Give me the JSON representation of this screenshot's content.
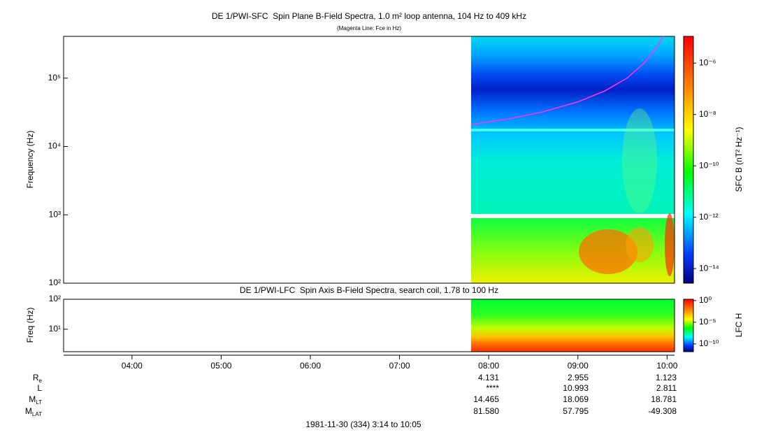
{
  "chart_data": {
    "type": "spectrogram",
    "xlim": [
      3.2333,
      10.0833
    ],
    "xticks": [
      {
        "value": 4,
        "label": "04:00"
      },
      {
        "value": 5,
        "label": "05:00"
      },
      {
        "value": 6,
        "label": "06:00"
      },
      {
        "value": 7,
        "label": "07:00"
      },
      {
        "value": 8,
        "label": "08:00"
      },
      {
        "value": 9,
        "label": "09:00"
      },
      {
        "value": 10,
        "label": "10:00"
      }
    ],
    "panels": [
      {
        "title": "DE 1/PWI-SFC  Spin Plane B-Field Spectra, 1.0 m² loop antenna, 104 Hz to 409 kHz",
        "subtitle": "(Magenta Line: Fce in Hz)",
        "ylabel": "Frequency (Hz)",
        "log_scale": true,
        "ylim": [
          100,
          409000
        ],
        "yticks": [
          {
            "value": 100,
            "label": "10²"
          },
          {
            "value": 1000,
            "label": "10³"
          },
          {
            "value": 10000,
            "label": "10⁴"
          },
          {
            "value": 100000,
            "label": "10⁵"
          }
        ],
        "series": [
          {
            "color": "#ff33ff",
            "x": [
              7.8,
              8.2,
              8.6,
              9.0,
              9.3,
              9.55,
              9.75,
              9.88,
              9.96
            ],
            "values": [
              21000,
              25000,
              32000,
              45000,
              65000,
              100000,
              170000,
              280000,
              409000
            ]
          }
        ],
        "colorbar": {
          "label": "SFC B (nT² Hz⁻¹)",
          "lim": [
            2.7e-15,
            1.1e-05
          ],
          "ticks": [
            {
              "value": 1e-06,
              "label": "10⁻⁶"
            },
            {
              "value": 1e-08,
              "label": "10⁻⁸"
            },
            {
              "value": 1e-10,
              "label": "10⁻¹⁰"
            },
            {
              "value": 1e-12,
              "label": "10⁻¹²"
            },
            {
              "value": 1e-14,
              "label": "10⁻¹⁴"
            }
          ]
        }
      },
      {
        "title": "DE 1/PWI-LFC  Spin Axis B-Field Spectra, search coil, 1.78 to 100 Hz",
        "ylabel": "Freq (Hz)",
        "log_scale": true,
        "ylim": [
          1.78,
          100
        ],
        "yticks": [
          {
            "value": 10,
            "label": "10¹"
          },
          {
            "value": 100,
            "label": "10²"
          }
        ],
        "colorbar": {
          "label": "LFC H",
          "lim": [
            1.6e-12,
            2
          ],
          "ticks": [
            {
              "value": 1,
              "label": "10⁰"
            },
            {
              "value": 1e-05,
              "label": "10⁻⁵"
            },
            {
              "value": 1e-10,
              "label": "10⁻¹⁰"
            }
          ]
        }
      }
    ],
    "ephemeris": {
      "labels": [
        {
          "main": "R",
          "sub": "e"
        },
        {
          "main": "L"
        },
        {
          "main": "M",
          "sub": "LT"
        },
        {
          "main": "M",
          "sub": "LAT"
        }
      ],
      "columns": [
        [
          "4.131",
          "****",
          "14.465",
          "81.580"
        ],
        [
          "2.955",
          "10.993",
          "18.069",
          "57.795"
        ],
        [
          "1.123",
          "2.811",
          "18.781",
          "-49.308"
        ]
      ]
    },
    "footer": "1981-11-30 (334) 3:14 to 10:05"
  }
}
